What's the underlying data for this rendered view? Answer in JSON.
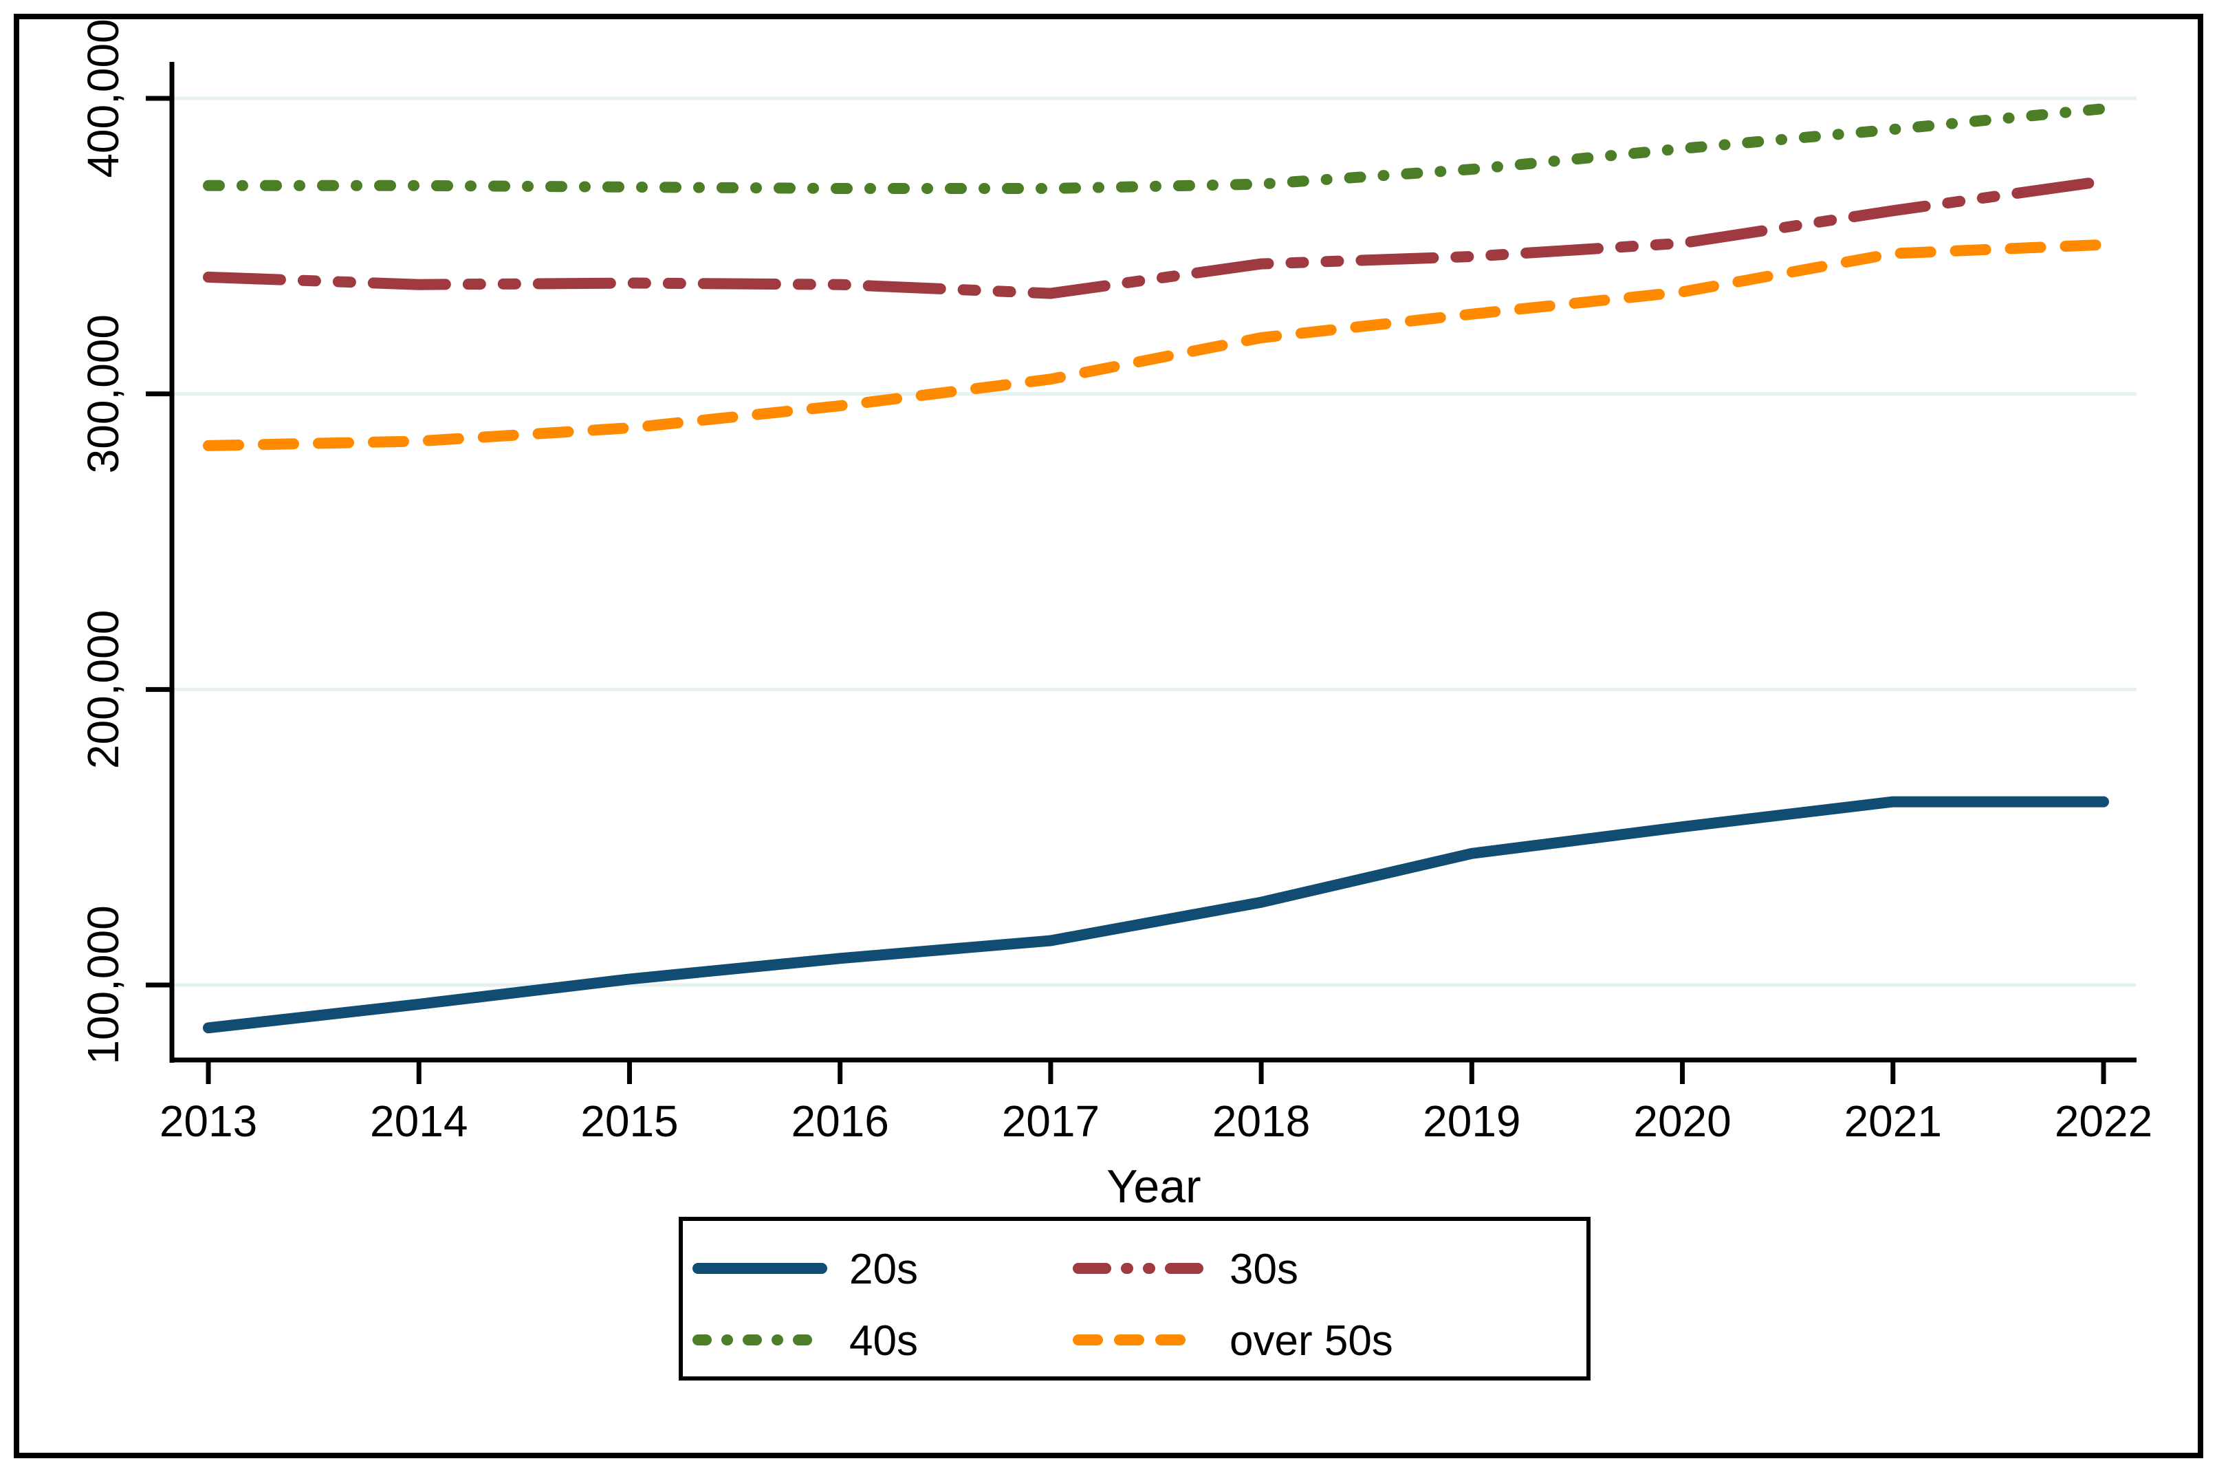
{
  "window": {
    "background": "#ffffff",
    "border_color": "#000000",
    "text_color": "#000000"
  },
  "chart_data": {
    "type": "line",
    "title": "",
    "xlabel": "Year",
    "ylabel": "",
    "x": [
      2013,
      2014,
      2015,
      2016,
      2017,
      2018,
      2019,
      2020,
      2021,
      2022
    ],
    "x_tick_labels": [
      "2013",
      "2014",
      "2015",
      "2016",
      "2017",
      "2018",
      "2019",
      "2020",
      "2021",
      "2022"
    ],
    "y_ticks": [
      100000,
      200000,
      300000,
      400000
    ],
    "y_tick_labels": [
      "100,000",
      "200,000",
      "300,000",
      "400,000"
    ],
    "xlim": [
      2012.83,
      2022.16
    ],
    "ylim": [
      74600,
      420500
    ],
    "grid": true,
    "grid_color": "#e7f1f2",
    "legend_position": "bottom-center",
    "series": [
      {
        "name": "20s",
        "color": "#114d73",
        "dash": "solid",
        "values": [
          85500,
          93500,
          102000,
          109000,
          115000,
          128000,
          144500,
          153500,
          162000,
          162000
        ]
      },
      {
        "name": "30s",
        "color": "#9e3a40",
        "dash": "dash-dot-dot",
        "values": [
          339500,
          337000,
          337500,
          337000,
          334000,
          344000,
          346500,
          351000,
          362000,
          372000
        ]
      },
      {
        "name": "40s",
        "color": "#4c7d27",
        "dash": "dash-dot",
        "values": [
          370500,
          370500,
          370000,
          369500,
          369500,
          371000,
          376000,
          383000,
          389500,
          396500
        ]
      },
      {
        "name": "over 50s",
        "color": "#ff8a00",
        "dash": "long-dash",
        "values": [
          282500,
          284000,
          288500,
          296000,
          305000,
          319000,
          327000,
          334500,
          347500,
          350500
        ]
      }
    ],
    "legend_entries": [
      "20s",
      "30s",
      "40s",
      "over 50s"
    ]
  }
}
